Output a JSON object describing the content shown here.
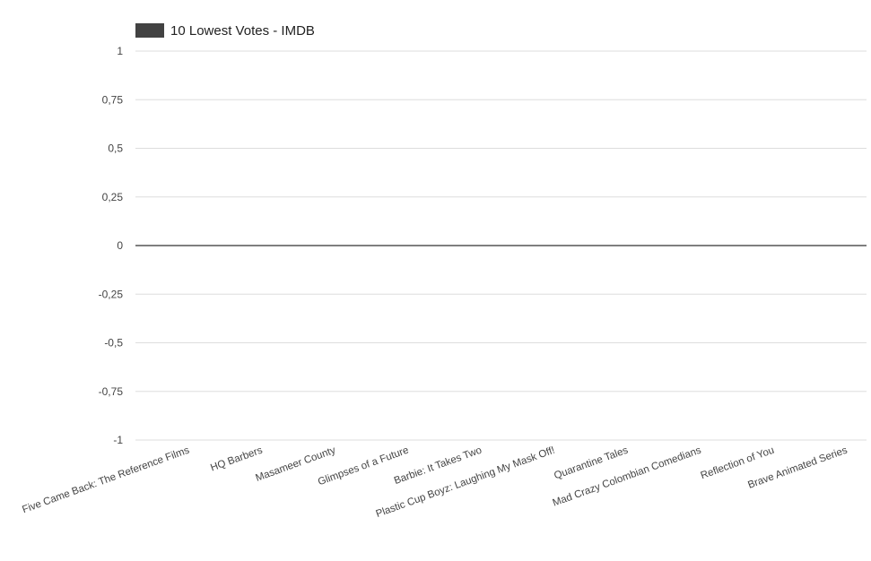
{
  "chart_data": {
    "type": "bar",
    "title": "",
    "xlabel": "",
    "ylabel": "",
    "legend_position": "top-left",
    "grid": true,
    "categories": [
      "Five Came Back: The Reference Films",
      "HQ Barbers",
      "Masameer County",
      "Glimpses of a Future",
      "Barbie: It Takes Two",
      "Plastic Cup Boyz: Laughing My Mask Off!",
      "Quarantine Tales",
      "Mad Crazy Colombian Comedians",
      "Reflection of You",
      "Brave Animated Series"
    ],
    "series": [
      {
        "name": "10 Lowest Votes - IMDB",
        "color": "#424242",
        "values": [
          0,
          0,
          0,
          0,
          0,
          0,
          0,
          0,
          0,
          0
        ]
      }
    ],
    "ylim": [
      -1,
      1
    ],
    "y_ticks": [
      1,
      0.75,
      0.5,
      0.25,
      0,
      -0.25,
      -0.5,
      -0.75,
      -1
    ],
    "y_tick_labels": [
      "1",
      "0,75",
      "0,5",
      "0,25",
      "0",
      "-0,25",
      "-0,5",
      "-0,75",
      "-1"
    ]
  }
}
